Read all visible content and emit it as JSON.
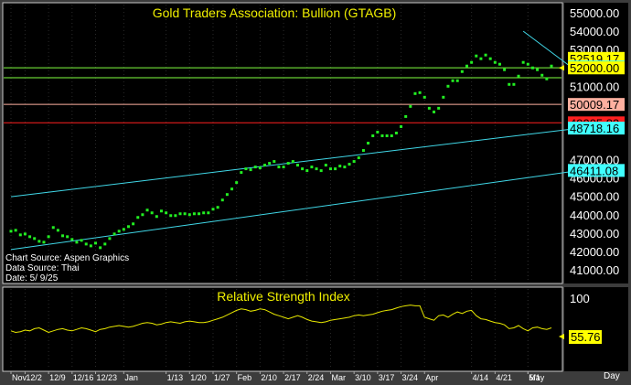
{
  "title": "Gold Traders Association: Bullion (GTAGB)",
  "info": {
    "source": "Chart Source: Aspen Graphics",
    "data_source": "Data Source: Thai",
    "date": "Date: 5/ 9/25"
  },
  "rsi": {
    "title": "Relative Strength Index",
    "value_label": "55.76",
    "top_label": "100",
    "day_label": "Day"
  },
  "colors": {
    "background": "#000000",
    "frame": "#3c3c3c",
    "price": "#22ee22",
    "rsi": "#e8e800",
    "title": "#f0f000",
    "green_line": "#80ff40",
    "salmon_line": "#ffb0a0",
    "red_line": "#d02020",
    "channel": "#40d8e8"
  },
  "chart_data": [
    {
      "type": "scatter",
      "title": "Gold Traders Association: Bullion (GTAGB)",
      "ylim": [
        40300,
        55500
      ],
      "y_ticks": [
        "55000.00",
        "54000.00",
        "53000.00",
        "51000.00",
        "50000.00",
        "49000.00",
        "47000.00",
        "46000.00",
        "45000.00",
        "44000.00",
        "43000.00",
        "42000.00",
        "41000.00"
      ],
      "levels": [
        {
          "label": "52519.17",
          "value": 52519.17,
          "color": "#ffff00",
          "line": false
        },
        {
          "label": "52050.00",
          "value": 52050.0,
          "color": "#40ffff",
          "line": false
        },
        {
          "label": "52008.33",
          "value": 52008.33,
          "color": "#80ff40",
          "line": true
        },
        {
          "label": "52000.00",
          "value": 52000.0,
          "color": "#ffff00",
          "line": false
        },
        {
          "label": "50009.17",
          "value": 50009.17,
          "color": "#ffb0a0",
          "line": true
        },
        {
          "label": "49005.83",
          "value": 49005.83,
          "color": "#ff2020",
          "line": true
        },
        {
          "label": "48718.16",
          "value": 48718.16,
          "color": "#40ffff",
          "line": false
        },
        {
          "label": "46411.08",
          "value": 46411.08,
          "color": "#40ffff",
          "line": false
        }
      ],
      "horizontal_line_extra": {
        "value": 51560,
        "color": "#80ff40"
      },
      "channel": [
        {
          "x0": 0,
          "y0": 44980,
          "x1": 121,
          "y1": 48718.16
        },
        {
          "x0": 0,
          "y0": 42100,
          "x1": 121,
          "y1": 46411.08
        },
        {
          "x0": 109,
          "y0": 54000,
          "x1": 121,
          "y1": 51700
        }
      ],
      "x_ticks": [
        {
          "label": "Nov",
          "i": 0
        },
        {
          "label": "12/2",
          "i": 3
        },
        {
          "label": "12/9",
          "i": 8
        },
        {
          "label": "12/16",
          "i": 13
        },
        {
          "label": "12/23",
          "i": 18
        },
        {
          "label": "Jan",
          "i": 24
        },
        {
          "label": "1/13",
          "i": 33
        },
        {
          "label": "1/20",
          "i": 38
        },
        {
          "label": "1/27",
          "i": 43
        },
        {
          "label": "Feb",
          "i": 48
        },
        {
          "label": "2/10",
          "i": 53
        },
        {
          "label": "2/17",
          "i": 58
        },
        {
          "label": "2/24",
          "i": 63
        },
        {
          "label": "Mar",
          "i": 68
        },
        {
          "label": "3/10",
          "i": 73
        },
        {
          "label": "3/17",
          "i": 78
        },
        {
          "label": "3/24",
          "i": 83
        },
        {
          "label": "Apr",
          "i": 88
        },
        {
          "label": "4/14",
          "i": 98
        },
        {
          "label": "4/21",
          "i": 103
        },
        {
          "label": "5/1",
          "i": 110
        },
        {
          "label": "May",
          "i": 110
        }
      ],
      "series": [
        {
          "values": [
            43100,
            43150,
            42900,
            42950,
            42800,
            42700,
            42550,
            42500,
            42800,
            43300,
            43150,
            42850,
            42800,
            42650,
            42500,
            42600,
            42400,
            42300,
            42450,
            42200,
            42400,
            42700,
            42950,
            43100,
            43200,
            43350,
            43500,
            43850,
            44000,
            44250,
            44100,
            43900,
            44200,
            44100,
            43950,
            43950,
            44050,
            44050,
            44000,
            44050,
            44050,
            44100,
            44100,
            44300,
            44400,
            44800,
            45100,
            45400,
            45750,
            46300,
            46500,
            46450,
            46600,
            46550,
            46700,
            46800,
            46900,
            46600,
            46600,
            46800,
            46900,
            46700,
            46500,
            46400,
            46600,
            46500,
            46400,
            46700,
            46500,
            46500,
            46650,
            46600,
            46750,
            46900,
            47100,
            47500,
            47900,
            48300,
            48500,
            48300,
            48300,
            48300,
            48450,
            48800,
            49350,
            49900,
            50600,
            50650,
            50400,
            49800,
            49600,
            49800,
            50400,
            51000,
            51300,
            51300,
            51800,
            52100,
            52300,
            52650,
            52500,
            52700,
            52500,
            52300,
            52200,
            51900,
            51100,
            51100,
            51550,
            52300,
            52200,
            52000,
            51900,
            51600,
            51400,
            52100
          ]
        }
      ]
    },
    {
      "type": "line",
      "title": "Relative Strength Index",
      "ylim": [
        0,
        100
      ],
      "values": [
        52,
        50,
        51,
        53,
        52,
        55,
        56,
        53,
        50,
        52,
        54,
        55,
        53,
        52,
        54,
        56,
        55,
        53,
        51,
        54,
        55,
        57,
        58,
        59,
        58,
        57,
        58,
        60,
        62,
        63,
        62,
        60,
        61,
        63,
        64,
        63,
        62,
        64,
        65,
        64,
        63,
        63,
        64,
        66,
        68,
        70,
        73,
        76,
        79,
        81,
        80,
        78,
        79,
        81,
        80,
        77,
        74,
        72,
        70,
        68,
        70,
        72,
        70,
        67,
        65,
        64,
        63,
        64,
        66,
        67,
        68,
        69,
        70,
        72,
        73,
        72,
        73,
        74,
        76,
        78,
        79,
        80,
        82,
        84,
        85,
        86,
        85,
        85,
        70,
        68,
        66,
        72,
        73,
        70,
        74,
        77,
        75,
        78,
        79,
        72,
        68,
        67,
        65,
        63,
        62,
        60,
        55,
        56,
        59,
        55,
        52,
        56,
        57,
        55,
        54,
        56
      ]
    }
  ]
}
